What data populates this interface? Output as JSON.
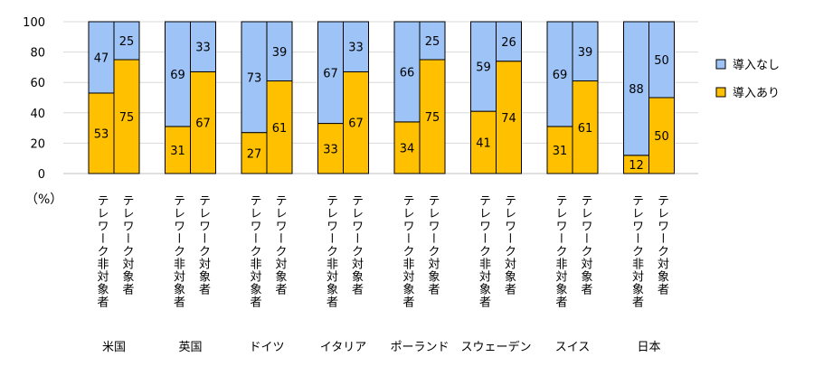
{
  "chart_data": {
    "type": "bar",
    "stacked": true,
    "ylim": [
      0,
      100
    ],
    "yticks": [
      "0",
      "20",
      "40",
      "60",
      "80",
      "100"
    ],
    "unit_label": "（%）",
    "group_labels": [
      "テレワーク非対象者",
      "テレワーク対象者"
    ],
    "countries": [
      "米国",
      "英国",
      "ドイツ",
      "イタリア",
      "ポーランド",
      "スウェーデン",
      "スイス",
      "日本"
    ],
    "series": [
      {
        "name": "導入あり",
        "color": "#FFC000",
        "values": [
          [
            53,
            75
          ],
          [
            31,
            67
          ],
          [
            27,
            61
          ],
          [
            33,
            67
          ],
          [
            34,
            75
          ],
          [
            41,
            74
          ],
          [
            31,
            61
          ],
          [
            12,
            50
          ]
        ]
      },
      {
        "name": "導入なし",
        "color": "#9DC3F7",
        "values": [
          [
            47,
            25
          ],
          [
            69,
            33
          ],
          [
            73,
            39
          ],
          [
            67,
            33
          ],
          [
            66,
            25
          ],
          [
            59,
            26
          ],
          [
            69,
            39
          ],
          [
            88,
            50
          ]
        ]
      }
    ],
    "legend": {
      "placement": "right",
      "order": [
        "導入なし",
        "導入あり"
      ]
    },
    "grid": true
  }
}
